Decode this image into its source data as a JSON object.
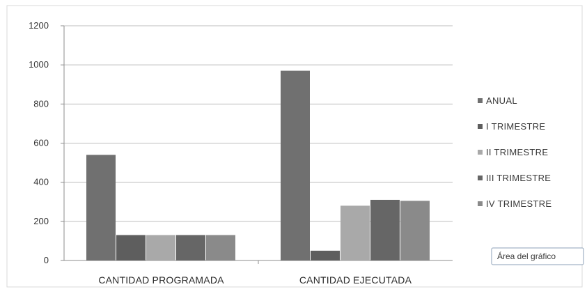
{
  "chart_data": {
    "type": "bar",
    "categories": [
      "CANTIDAD PROGRAMADA",
      "CANTIDAD EJECUTADA"
    ],
    "series": [
      {
        "name": "ANUAL",
        "values": [
          540,
          970
        ],
        "color": "#707070"
      },
      {
        "name": "I TRIMESTRE",
        "values": [
          130,
          50
        ],
        "color": "#5e5e5e"
      },
      {
        "name": "II TRIMESTRE",
        "values": [
          130,
          280
        ],
        "color": "#a9a9a9"
      },
      {
        "name": "III TRIMESTRE",
        "values": [
          130,
          310
        ],
        "color": "#666666"
      },
      {
        "name": "IV TRIMESTRE",
        "values": [
          130,
          305
        ],
        "color": "#8a8a8a"
      }
    ],
    "ylim": [
      0,
      1200
    ],
    "yticks": [
      "0",
      "200",
      "400",
      "600",
      "800",
      "1000",
      "1200"
    ],
    "grid": true,
    "legend_position": "right"
  },
  "tooltip": {
    "label": "Área del gráfico"
  }
}
